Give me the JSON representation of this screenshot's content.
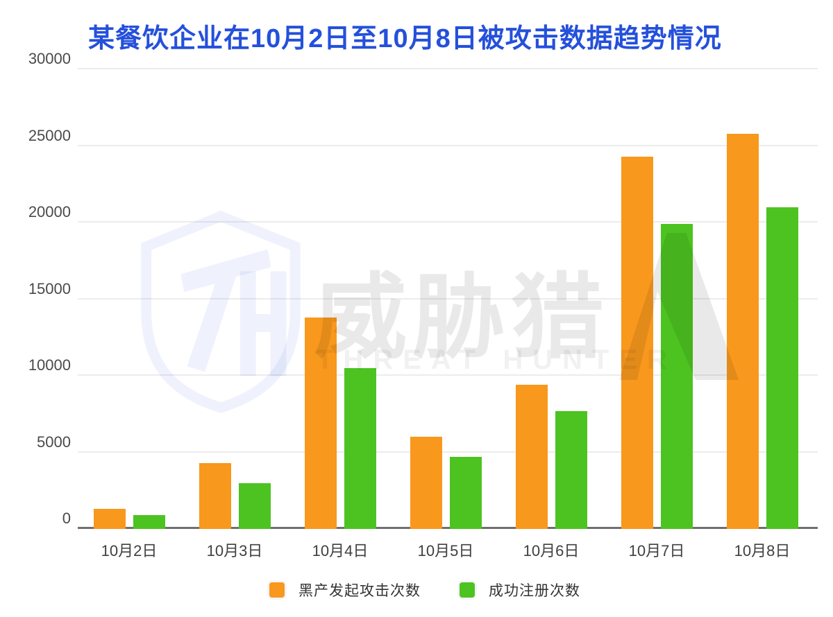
{
  "title": "某餐饮企业在10月2日至10月8日被攻击数据趋势情况",
  "colors": {
    "title": "#2450DB",
    "attack_orange": "#F8981D",
    "register_green": "#4CC321"
  },
  "watermark": {
    "text_cn": "威胁猎",
    "text_mark": "人",
    "text_en": "THREAT HUNTER"
  },
  "chart_data": {
    "type": "bar",
    "title": "某餐饮企业在10月2日至10月8日被攻击数据趋势情况",
    "categories": [
      "10月2日",
      "10月3日",
      "10月4日",
      "10月5日",
      "10月6日",
      "10月7日",
      "10月8日"
    ],
    "series": [
      {
        "name": "黑产发起攻击次数",
        "color": "#F8981D",
        "values": [
          1300,
          4300,
          13800,
          6000,
          9400,
          24300,
          25800
        ]
      },
      {
        "name": "成功注册次数",
        "color": "#4CC321",
        "values": [
          900,
          3000,
          10500,
          4700,
          7700,
          19900,
          21000
        ]
      }
    ],
    "xlabel": "",
    "ylabel": "",
    "ylim": [
      0,
      30000
    ],
    "yticks": [
      0,
      5000,
      10000,
      15000,
      20000,
      25000,
      30000
    ],
    "grid": true,
    "legend_position": "bottom"
  }
}
